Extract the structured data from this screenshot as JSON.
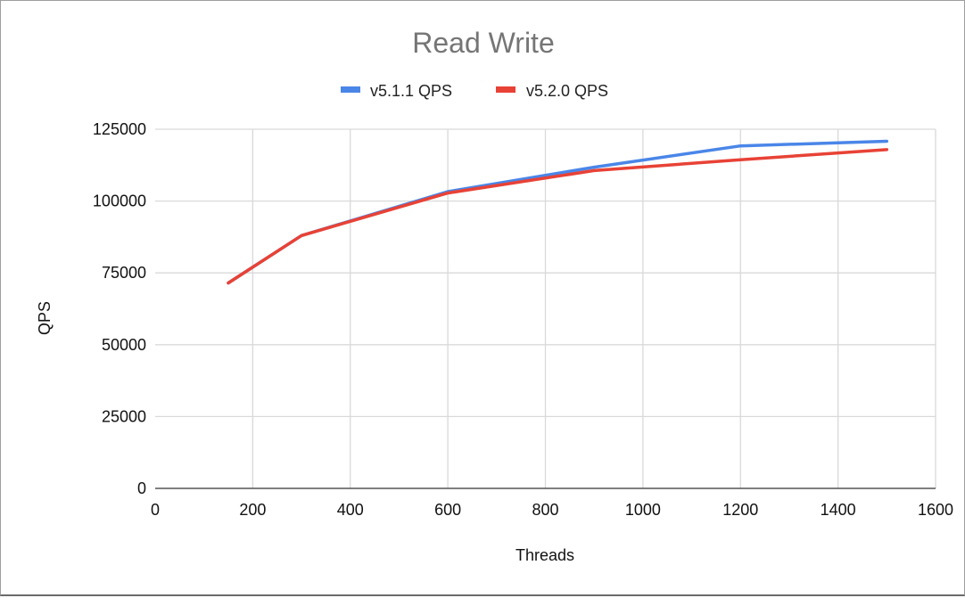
{
  "chart_data": {
    "type": "line",
    "title": "Read Write",
    "xlabel": "Threads",
    "ylabel": "QPS",
    "xlim": [
      0,
      1600
    ],
    "ylim": [
      0,
      125000
    ],
    "x_ticks": [
      "0",
      "200",
      "400",
      "600",
      "800",
      "1000",
      "1200",
      "1400",
      "1600"
    ],
    "y_ticks": [
      "0",
      "25000",
      "50000",
      "75000",
      "100000",
      "125000"
    ],
    "grid": true,
    "legend_position": "top",
    "series": [
      {
        "name": "v5.1.1 QPS",
        "color": "#4a86e8",
        "x": [
          150,
          300,
          600,
          900,
          1200,
          1500
        ],
        "values": [
          71500,
          88000,
          103300,
          111800,
          119200,
          120800
        ]
      },
      {
        "name": "v5.2.0 QPS",
        "color": "#e84236",
        "x": [
          150,
          300,
          600,
          900,
          1200,
          1500
        ],
        "values": [
          71500,
          88000,
          102800,
          110600,
          114400,
          117900
        ]
      }
    ]
  }
}
